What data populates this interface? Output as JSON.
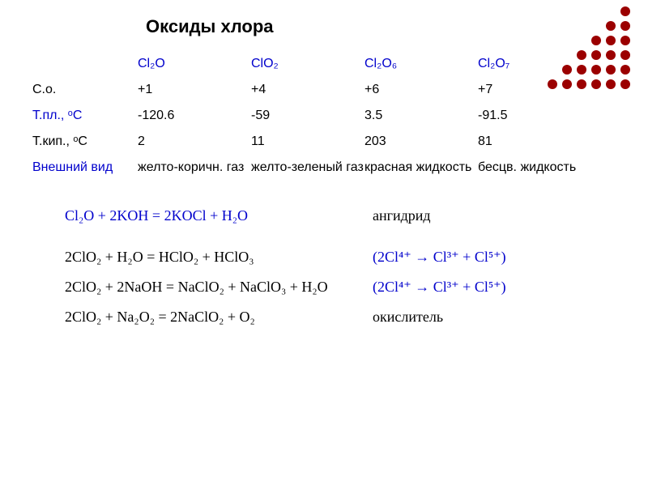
{
  "title": "Оксиды хлора",
  "decoration": {
    "dot_visible": "#9b0000",
    "dot_hidden": "transparent",
    "grid": [
      [
        0,
        0,
        0,
        0,
        0,
        1
      ],
      [
        0,
        0,
        0,
        0,
        1,
        1
      ],
      [
        0,
        0,
        0,
        1,
        1,
        1
      ],
      [
        0,
        0,
        1,
        1,
        1,
        1
      ],
      [
        0,
        1,
        1,
        1,
        1,
        1
      ],
      [
        1,
        1,
        1,
        1,
        1,
        1
      ]
    ]
  },
  "table": {
    "header_color": "#0000cc",
    "row_label_color": "#0000cc",
    "cell_color": "#000000",
    "columns": [
      "",
      "Cl₂O",
      "ClO₂",
      "Cl₂O₆",
      "Cl₂O₇"
    ],
    "rows": [
      {
        "label": "С.о.",
        "values": [
          "+1",
          "+4",
          "+6",
          "+7"
        ],
        "label_blue": false
      },
      {
        "label": "Т.пл., ᵒС",
        "values": [
          "-120.6",
          "-59",
          "3.5",
          "-91.5"
        ],
        "label_blue": true
      },
      {
        "label": "Т.кип., ᵒС",
        "values": [
          "2",
          "11",
          "203",
          "81"
        ],
        "label_blue": false
      },
      {
        "label": "Внешний вид",
        "values": [
          "желто-коричн. газ",
          "желто-зеленый газ",
          "красная жидкость",
          "бесцв. жидкость"
        ],
        "label_blue": true
      }
    ]
  },
  "reactions": {
    "blue": "#0000cc",
    "black": "#000000",
    "items": [
      {
        "lhs_prefix": "Cl₂O",
        "rest": " + 2KOH = 2KOCl + H₂O",
        "note": "ангидрид",
        "note_blue": false,
        "lhs_blue": true
      },
      {
        "lhs_prefix": "2ClO₂",
        "rest": " + H₂O = HClO₂ + HClO₃",
        "note": "(2Cl⁴⁺ → Cl³⁺ + Cl⁵⁺)",
        "note_blue": true,
        "lhs_blue": false
      },
      {
        "lhs_prefix": "2ClO₂",
        "rest": " + 2NaOH = NaClO₂ + NaClO₃ + H₂O",
        "note": "(2Cl⁴⁺ → Cl³⁺ + Cl⁵⁺)",
        "note_blue": true,
        "lhs_blue": false
      },
      {
        "lhs_prefix": "2ClO₂",
        "rest": " + Na₂O₂ = 2NaClO₂ + O₂",
        "note": "окислитель",
        "note_blue": false,
        "lhs_blue": false
      }
    ]
  }
}
